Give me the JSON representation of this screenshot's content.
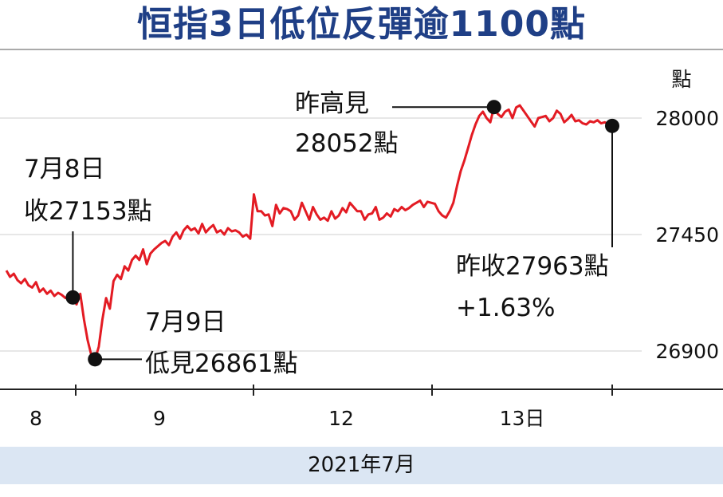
{
  "title": "恒指3日低位反彈逾1100點",
  "footer": "2021年7月",
  "colors": {
    "title": "#1f3f86",
    "line": "#e31b23",
    "grid": "#cfcfcf",
    "footer_bg": "#dbe6f3"
  },
  "chart_data": {
    "type": "line",
    "ylabel": "點",
    "y_ticks": [
      28000,
      27450,
      26900
    ],
    "ylim": [
      26800,
      28250
    ],
    "x_ticks": [
      "8",
      "9",
      "12",
      "13日"
    ],
    "grid": true,
    "series": [
      {
        "values": [
          27280,
          27250,
          27265,
          27235,
          27220,
          27240,
          27210,
          27200,
          27225,
          27180,
          27195,
          27170,
          27185,
          27160,
          27175,
          27165,
          27150,
          27160,
          27153,
          27120,
          27170,
          27050,
          26950,
          26880,
          26861,
          26920,
          27050,
          27150,
          27100,
          27230,
          27260,
          27240,
          27300,
          27280,
          27330,
          27350,
          27330,
          27380,
          27310,
          27360,
          27380,
          27395,
          27410,
          27420,
          27400,
          27440,
          27460,
          27430,
          27470,
          27490,
          27470,
          27480,
          27455,
          27500,
          27460,
          27480,
          27495,
          27460,
          27470,
          27450,
          27480,
          27465,
          27470,
          27460,
          27440,
          27450,
          27430,
          27640,
          27560,
          27560,
          27540,
          27545,
          27490,
          27590,
          27550,
          27575,
          27570,
          27560,
          27520,
          27540,
          27600,
          27560,
          27520,
          27580,
          27545,
          27520,
          27530,
          27515,
          27560,
          27525,
          27540,
          27575,
          27555,
          27600,
          27580,
          27560,
          27560,
          27520,
          27545,
          27550,
          27580,
          27520,
          27530,
          27550,
          27535,
          27570,
          27560,
          27580,
          27565,
          27575,
          27590,
          27600,
          27610,
          27580,
          27605,
          27600,
          27595,
          27560,
          27540,
          27530,
          27560,
          27600,
          27680,
          27750,
          27800,
          27860,
          27920,
          27970,
          28010,
          28030,
          28000,
          27980,
          28052,
          28020,
          28005,
          28030,
          28040,
          28000,
          28050,
          28060,
          28035,
          28010,
          27985,
          27960,
          28000,
          28005,
          28010,
          27985,
          28000,
          28035,
          28020,
          27980,
          27995,
          28015,
          27985,
          27990,
          27975,
          27970,
          27985,
          27980,
          27990,
          27975,
          27980,
          27970,
          27963
        ]
      }
    ],
    "annotations": [
      {
        "key": "close_8",
        "lines": [
          "7月8日",
          "收27153點"
        ],
        "value": 27153
      },
      {
        "key": "low_9",
        "lines": [
          "7月9日",
          "低見26861點"
        ],
        "value": 26861
      },
      {
        "key": "high",
        "lines": [
          "昨高見",
          "28052點"
        ],
        "value": 28052
      },
      {
        "key": "close_13",
        "lines": [
          "昨收27963點",
          "+1.63%"
        ],
        "value": 27963
      }
    ]
  }
}
